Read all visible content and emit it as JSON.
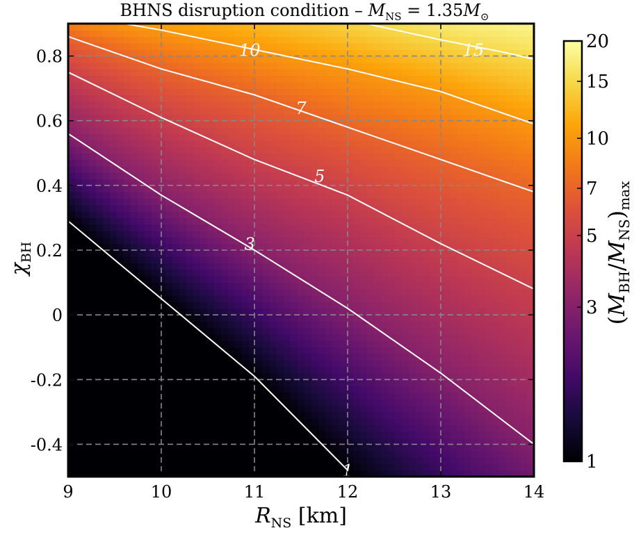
{
  "chart_data": {
    "type": "heatmap",
    "title": "BHNS disruption condition – M_NS = 1.35M_⊙",
    "title_parts": {
      "prefix": "BHNS disruption condition – ",
      "M": "M",
      "ns": "NS",
      "eq": " = 1.35",
      "M2": "M",
      "sun": "⊙"
    },
    "xlabel": "R_NS [km]",
    "xlabel_parts": {
      "R": "R",
      "sub": "NS",
      "unit": " [km]"
    },
    "ylabel": "χ_BH",
    "ylabel_parts": {
      "chi": "χ",
      "sub": "BH"
    },
    "colorbar_label": "(M_BH/M_NS)_max",
    "colorbar_label_parts": {
      "open": "(",
      "M1": "M",
      "s1": "BH",
      "slash": "/",
      "M2": "M",
      "s2": "NS",
      "close": ")",
      "s3": "max"
    },
    "xlim": [
      9,
      14
    ],
    "ylim": [
      -0.5,
      0.9
    ],
    "x_ticks": [
      9,
      10,
      11,
      12,
      13,
      14
    ],
    "x_tick_labels": [
      "9",
      "10",
      "11",
      "12",
      "13",
      "14"
    ],
    "y_ticks": [
      -0.4,
      -0.2,
      0,
      0.2,
      0.4,
      0.6,
      0.8
    ],
    "y_tick_labels": [
      "-0.4",
      "-0.2",
      "0",
      "0.2",
      "0.4",
      "0.6",
      "0.8"
    ],
    "grid": true,
    "colormap": "inferno",
    "colorbar_scale": "log",
    "colorbar_range": [
      1,
      20
    ],
    "colorbar_ticks": [
      1,
      3,
      5,
      7,
      10,
      15,
      20
    ],
    "colorbar_tick_labels": [
      "1",
      "3",
      "5",
      "7",
      "10",
      "15",
      "20"
    ],
    "contours": [
      {
        "level": 1,
        "label": "1",
        "label_at": [
          12.0,
          -0.48
        ],
        "points": [
          [
            9.0,
            0.29
          ],
          [
            10.0,
            0.05
          ],
          [
            11.0,
            -0.19
          ],
          [
            12.0,
            -0.48
          ]
        ]
      },
      {
        "level": 3,
        "label": "3",
        "label_at": [
          10.95,
          0.22
        ],
        "points": [
          [
            9.0,
            0.56
          ],
          [
            10.0,
            0.37
          ],
          [
            11.0,
            0.2
          ],
          [
            12.0,
            0.02
          ],
          [
            13.0,
            -0.18
          ],
          [
            14.0,
            -0.4
          ]
        ]
      },
      {
        "level": 5,
        "label": "5",
        "label_at": [
          11.7,
          0.43
        ],
        "points": [
          [
            9.0,
            0.75
          ],
          [
            10.0,
            0.61
          ],
          [
            11.0,
            0.48
          ],
          [
            12.0,
            0.37
          ],
          [
            13.0,
            0.22
          ],
          [
            14.0,
            0.08
          ]
        ]
      },
      {
        "level": 7,
        "label": "7",
        "label_at": [
          11.5,
          0.64
        ],
        "points": [
          [
            9.0,
            0.86
          ],
          [
            10.0,
            0.76
          ],
          [
            11.0,
            0.68
          ],
          [
            12.0,
            0.58
          ],
          [
            13.0,
            0.48
          ],
          [
            14.0,
            0.38
          ]
        ]
      },
      {
        "level": 10,
        "label": "10",
        "label_at": [
          10.95,
          0.82
        ],
        "points": [
          [
            9.6,
            0.9
          ],
          [
            10.0,
            0.88
          ],
          [
            11.0,
            0.82
          ],
          [
            12.0,
            0.76
          ],
          [
            13.0,
            0.69
          ],
          [
            14.0,
            0.59
          ]
        ]
      },
      {
        "level": 15,
        "label": "15",
        "label_at": [
          13.35,
          0.82
        ],
        "points": [
          [
            12.2,
            0.9
          ],
          [
            13.0,
            0.85
          ],
          [
            13.7,
            0.81
          ],
          [
            14.0,
            0.79
          ]
        ]
      }
    ],
    "colors": {
      "grid": "#888888",
      "contour": "#ffffff",
      "frame": "#000000"
    }
  }
}
